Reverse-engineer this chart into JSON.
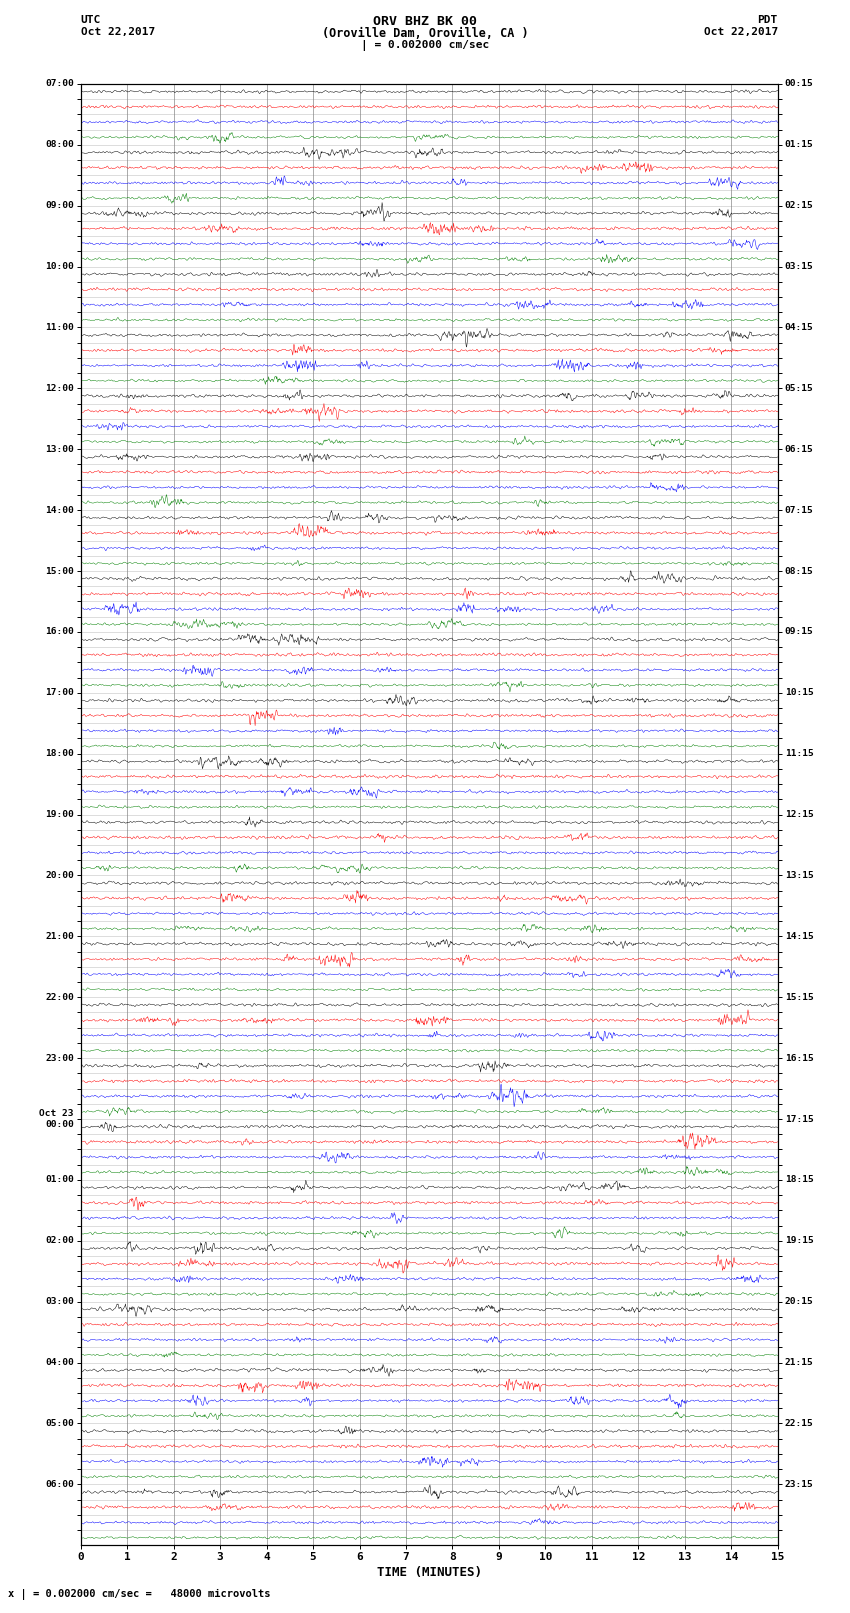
{
  "title_line1": "ORV BHZ BK 00",
  "title_line2": "(Oroville Dam, Oroville, CA )",
  "scale_text": "| = 0.002000 cm/sec",
  "left_label": "UTC",
  "left_date": "Oct 22,2017",
  "right_label": "PDT",
  "right_date": "Oct 22,2017",
  "xlabel": "TIME (MINUTES)",
  "footer": "x | = 0.002000 cm/sec =   48000 microvolts",
  "x_min": 0,
  "x_max": 15,
  "x_ticks": [
    0,
    1,
    2,
    3,
    4,
    5,
    6,
    7,
    8,
    9,
    10,
    11,
    12,
    13,
    14,
    15
  ],
  "trace_colors": [
    "black",
    "red",
    "blue",
    "green"
  ],
  "background_color": "white",
  "num_rows": 96,
  "fig_width": 8.5,
  "fig_height": 16.13,
  "dpi": 100,
  "utc_labels": [
    "07:00",
    "",
    "",
    "",
    "08:00",
    "",
    "",
    "",
    "09:00",
    "",
    "",
    "",
    "10:00",
    "",
    "",
    "",
    "11:00",
    "",
    "",
    "",
    "12:00",
    "",
    "",
    "",
    "13:00",
    "",
    "",
    "",
    "14:00",
    "",
    "",
    "",
    "15:00",
    "",
    "",
    "",
    "16:00",
    "",
    "",
    "",
    "17:00",
    "",
    "",
    "",
    "18:00",
    "",
    "",
    "",
    "19:00",
    "",
    "",
    "",
    "20:00",
    "",
    "",
    "",
    "21:00",
    "",
    "",
    "",
    "22:00",
    "",
    "",
    "",
    "23:00",
    "",
    "",
    "",
    "Oct 23\n00:00",
    "",
    "",
    "",
    "01:00",
    "",
    "",
    "",
    "02:00",
    "",
    "",
    "",
    "03:00",
    "",
    "",
    "",
    "04:00",
    "",
    "",
    "",
    "05:00",
    "",
    "",
    "",
    "06:00",
    "",
    "",
    ""
  ],
  "pdt_labels": [
    "00:15",
    "",
    "",
    "",
    "01:15",
    "",
    "",
    "",
    "02:15",
    "",
    "",
    "",
    "03:15",
    "",
    "",
    "",
    "04:15",
    "",
    "",
    "",
    "05:15",
    "",
    "",
    "",
    "06:15",
    "",
    "",
    "",
    "07:15",
    "",
    "",
    "",
    "08:15",
    "",
    "",
    "",
    "09:15",
    "",
    "",
    "",
    "10:15",
    "",
    "",
    "",
    "11:15",
    "",
    "",
    "",
    "12:15",
    "",
    "",
    "",
    "13:15",
    "",
    "",
    "",
    "14:15",
    "",
    "",
    "",
    "15:15",
    "",
    "",
    "",
    "16:15",
    "",
    "",
    "",
    "17:15",
    "",
    "",
    "",
    "18:15",
    "",
    "",
    "",
    "19:15",
    "",
    "",
    "",
    "20:15",
    "",
    "",
    "",
    "21:15",
    "",
    "",
    "",
    "22:15",
    "",
    "",
    "",
    "23:15",
    "",
    "",
    ""
  ],
  "vline_color": "#888888",
  "hline_color": "#888888",
  "trace_linewidth": 0.35,
  "vline_linewidth": 0.5,
  "hline_linewidth": 0.4
}
